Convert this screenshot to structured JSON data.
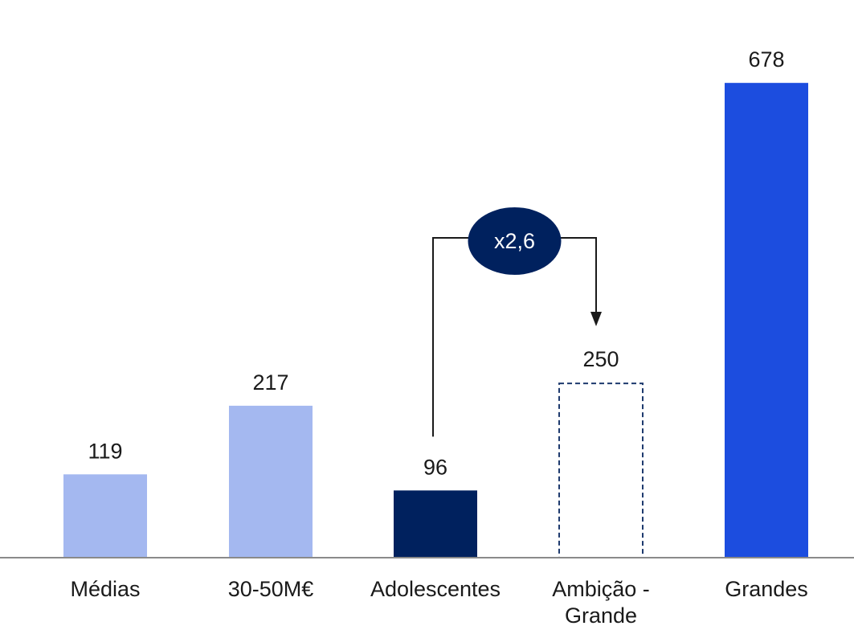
{
  "chart_data": {
    "type": "bar",
    "categories": [
      [
        "Médias"
      ],
      [
        "30-50M€"
      ],
      [
        "Adolescentes"
      ],
      [
        "Ambição -",
        "Grande"
      ],
      [
        "Grandes"
      ]
    ],
    "values": [
      119,
      217,
      96,
      250,
      678
    ],
    "value_labels": [
      "119",
      "217",
      "96",
      "250",
      "678"
    ],
    "bar_styles": [
      "solid",
      "solid",
      "solid",
      "dashed",
      "solid"
    ],
    "colors": [
      "#a4b8f0",
      "#a4b8f0",
      "#00215e",
      "#1e3a6e",
      "#1c4ddf"
    ],
    "ylim": [
      0,
      700
    ],
    "grid": false,
    "annotation": {
      "text": "x2,6",
      "from_category": 2,
      "to_category": 3,
      "badge_color": "#00215e",
      "text_color": "#ffffff"
    },
    "axis_color": "#8a8a8a"
  }
}
